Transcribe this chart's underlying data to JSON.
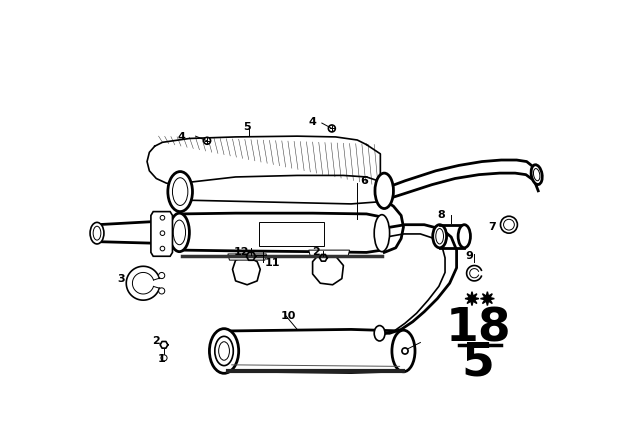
{
  "bg_color": "#ffffff",
  "line_color": "#000000",
  "fig_width": 6.4,
  "fig_height": 4.48,
  "dpi": 100,
  "catalog_number": "18",
  "catalog_sub": "5"
}
